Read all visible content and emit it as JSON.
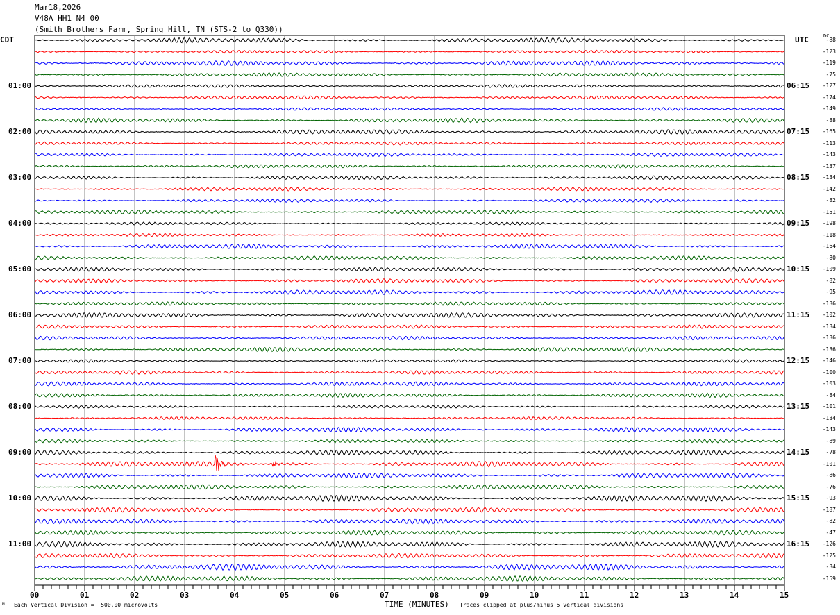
{
  "header": {
    "date": "Mar18,2026",
    "channel": "V48A HH1 N4 00",
    "station": "(Smith Brothers Farm, Spring Hill, TN (STS-2 to Q330))"
  },
  "left_zone": "CDT",
  "right_zone": "UTC",
  "dc_label": "DC",
  "left_hours": [
    "01:00",
    "02:00",
    "03:00",
    "04:00",
    "05:00",
    "06:00",
    "07:00",
    "08:00",
    "09:00",
    "10:00",
    "11:00"
  ],
  "right_hours": [
    "06:15",
    "07:15",
    "08:15",
    "09:15",
    "10:15",
    "11:15",
    "12:15",
    "13:15",
    "14:15",
    "15:15",
    "16:15"
  ],
  "dc_offsets": [
    "-88",
    "-123",
    "-119",
    "-75",
    "-127",
    "-174",
    "-149",
    "-88",
    "-165",
    "-113",
    "-143",
    "-137",
    "-134",
    "-142",
    "-82",
    "-151",
    "-198",
    "-118",
    "-164",
    "-80",
    "-109",
    "-82",
    "-95",
    "-136",
    "-102",
    "-134",
    "-136",
    "-136",
    "-146",
    "-100",
    "-103",
    "-84",
    "-101",
    "-134",
    "-143",
    "-89",
    "-78",
    "-101",
    "-86",
    "-76",
    "-93",
    "-187",
    "-82",
    "-47",
    "-126",
    "-125",
    "-34",
    "-159"
  ],
  "trace_colors": [
    "#000000",
    "#ff0000",
    "#0000ff",
    "#006400"
  ],
  "footer": {
    "scale": "Each Vertical Division =  500.00 microvolts",
    "xlabel": "TIME (MINUTES)",
    "clip_note": "Traces clipped at plus/minus 5 vertical divisions"
  },
  "chart_data": {
    "type": "line",
    "title": "V48A HH1 N4 00 helicorder",
    "xlabel": "TIME (MINUTES)",
    "x_ticks": [
      "00",
      "01",
      "02",
      "03",
      "04",
      "05",
      "06",
      "07",
      "08",
      "09",
      "10",
      "11",
      "12",
      "13",
      "14",
      "15"
    ],
    "xlim": [
      0,
      15
    ],
    "traces_per_hour": 4,
    "trace_count": 48,
    "grid": true,
    "events": [
      {
        "trace_index": 37,
        "start_minute": 3.6,
        "end_minute": 4.0,
        "amplitude": 5
      },
      {
        "trace_index": 37,
        "start_minute": 4.75,
        "end_minute": 5.3,
        "amplitude": 1
      }
    ]
  }
}
